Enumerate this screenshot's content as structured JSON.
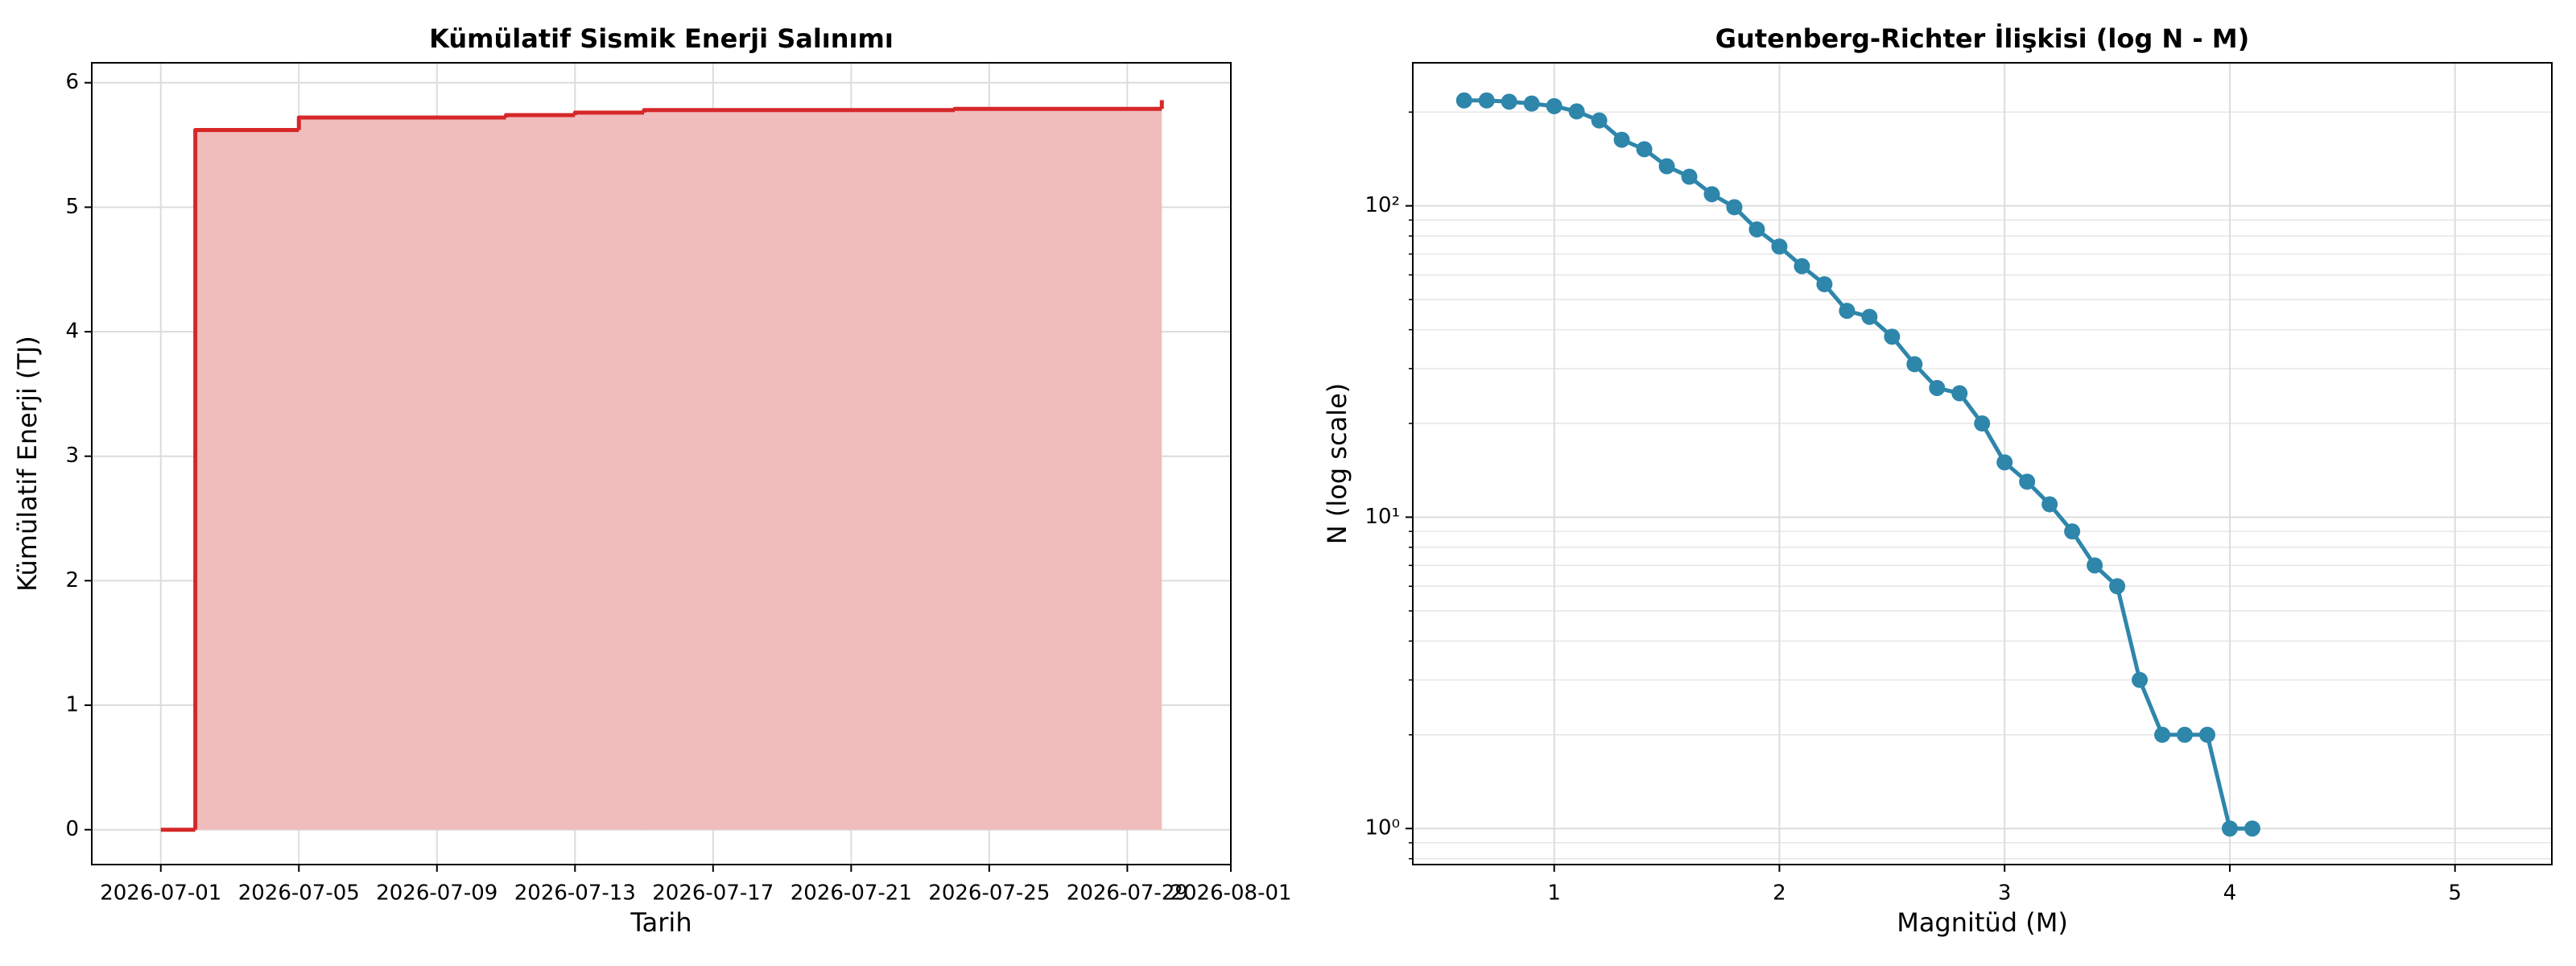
{
  "chart_data": [
    {
      "type": "step-area",
      "title": "Kümülatif Sismik Enerji Salınımı",
      "xlabel": "Tarih",
      "ylabel": "Kümülatif Enerji (TJ)",
      "x": [
        "2026-07-01",
        "2026-07-02",
        "2026-07-05",
        "2026-07-11",
        "2026-07-13",
        "2026-07-15",
        "2026-07-24",
        "2026-07-30"
      ],
      "values": [
        0,
        5.62,
        5.72,
        5.74,
        5.76,
        5.78,
        5.79,
        5.86
      ],
      "color": "#d62728",
      "fill_color": "#f0bcbc",
      "xlim": [
        "2026-06-29",
        "2026-08-01"
      ],
      "xticks": [
        "2026-07-01",
        "2026-07-05",
        "2026-07-09",
        "2026-07-13",
        "2026-07-17",
        "2026-07-21",
        "2026-07-25",
        "2026-07-29",
        "2026-08-01"
      ],
      "ylim": [
        -0.28,
        6.16
      ],
      "yticks": [
        0,
        1,
        2,
        3,
        4,
        5,
        6
      ],
      "grid": true
    },
    {
      "type": "line",
      "title": "Gutenberg-Richter İlişkisi (log N - M)",
      "xlabel": "Magnitüd (M)",
      "ylabel": "N (log scale)",
      "x": [
        0.6,
        0.7,
        0.8,
        0.9,
        1.0,
        1.1,
        1.2,
        1.3,
        1.4,
        1.5,
        1.6,
        1.7,
        1.8,
        1.9,
        2.0,
        2.1,
        2.2,
        2.3,
        2.4,
        2.5,
        2.6,
        2.7,
        2.8,
        2.9,
        3.0,
        3.1,
        3.2,
        3.3,
        3.4,
        3.5,
        3.6,
        3.7,
        3.8,
        3.9,
        4.0,
        4.1
      ],
      "values": [
        218,
        218,
        216,
        213,
        209,
        201,
        188,
        163,
        152,
        134,
        124,
        109,
        99,
        84,
        74,
        64,
        56,
        46,
        44,
        38,
        31,
        26,
        25,
        20,
        15,
        13,
        11,
        9,
        7,
        6,
        3,
        2,
        2,
        2,
        1,
        1
      ],
      "color": "#2e86ab",
      "log_y": true,
      "xlim": [
        0.372,
        5.43
      ],
      "xticks": [
        1,
        2,
        3,
        4,
        5
      ],
      "ylim": [
        0.766,
        288
      ],
      "yticks": [
        {
          "value": 1,
          "label": "10⁰"
        },
        {
          "value": 10,
          "label": "10¹"
        },
        {
          "value": 100,
          "label": "10²"
        }
      ],
      "grid": true,
      "minor_grid": true
    }
  ]
}
